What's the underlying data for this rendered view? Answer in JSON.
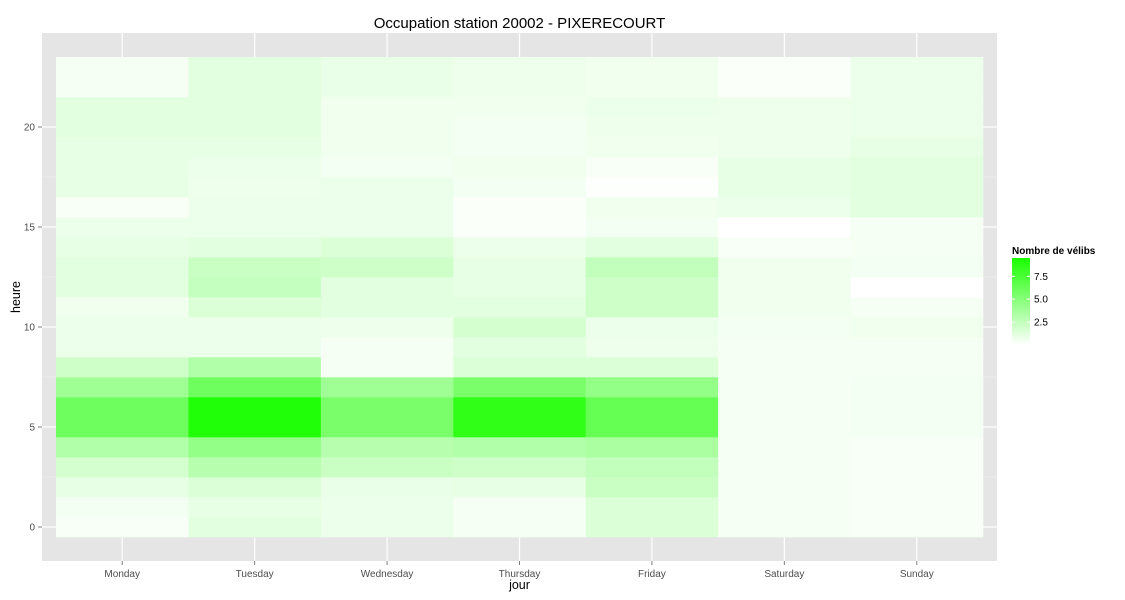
{
  "chart_data": {
    "type": "heatmap",
    "title": "Occupation station 20002 - PIXERECOURT",
    "xlabel": "jour",
    "ylabel": "heure",
    "x_categories": [
      "Monday",
      "Tuesday",
      "Wednesday",
      "Thursday",
      "Friday",
      "Saturday",
      "Sunday"
    ],
    "y_hours": [
      0,
      1,
      2,
      3,
      4,
      5,
      6,
      7,
      8,
      9,
      10,
      11,
      12,
      13,
      14,
      15,
      16,
      17,
      18,
      19,
      20,
      21,
      22,
      23
    ],
    "yticks": [
      0,
      5,
      10,
      15,
      20
    ],
    "ylim": [
      -0.5,
      23.5
    ],
    "values": [
      [
        0.3,
        1.2,
        0.8,
        0.4,
        1.5,
        0.4,
        0.3
      ],
      [
        0.5,
        1.0,
        0.8,
        0.4,
        1.5,
        0.4,
        0.3
      ],
      [
        1.0,
        1.5,
        0.9,
        1.0,
        2.2,
        0.4,
        0.3
      ],
      [
        1.8,
        3.0,
        2.2,
        2.0,
        2.5,
        0.4,
        0.3
      ],
      [
        3.2,
        4.5,
        3.0,
        3.2,
        3.5,
        0.4,
        0.3
      ],
      [
        6.0,
        9.2,
        5.5,
        8.6,
        6.4,
        0.4,
        0.5
      ],
      [
        6.0,
        9.2,
        5.5,
        8.6,
        6.4,
        0.4,
        0.5
      ],
      [
        4.0,
        6.0,
        4.0,
        5.5,
        4.5,
        0.4,
        0.5
      ],
      [
        2.0,
        3.2,
        0.4,
        1.5,
        1.5,
        0.4,
        0.4
      ],
      [
        0.8,
        0.8,
        0.4,
        1.2,
        0.7,
        0.4,
        0.4
      ],
      [
        0.8,
        0.8,
        0.7,
        1.8,
        0.8,
        0.5,
        0.6
      ],
      [
        0.6,
        1.5,
        1.2,
        1.2,
        2.0,
        0.6,
        0.4
      ],
      [
        1.2,
        2.4,
        1.2,
        1.0,
        2.0,
        0.6,
        0.0
      ],
      [
        1.2,
        2.2,
        2.0,
        1.0,
        2.5,
        0.6,
        0.5
      ],
      [
        1.0,
        1.2,
        1.5,
        0.8,
        1.2,
        0.3,
        0.4
      ],
      [
        0.8,
        0.8,
        0.8,
        0.2,
        0.5,
        0.0,
        0.4
      ],
      [
        0.3,
        0.8,
        0.8,
        0.2,
        0.6,
        0.8,
        1.2
      ],
      [
        1.0,
        0.7,
        0.8,
        0.5,
        0.1,
        1.0,
        1.2
      ],
      [
        1.0,
        0.8,
        0.5,
        0.6,
        0.3,
        1.0,
        1.2
      ],
      [
        1.0,
        1.0,
        0.6,
        0.5,
        0.6,
        0.7,
        1.0
      ],
      [
        1.2,
        1.2,
        0.6,
        0.5,
        0.7,
        0.7,
        0.8
      ],
      [
        1.2,
        1.2,
        0.6,
        0.6,
        0.8,
        0.7,
        0.8
      ],
      [
        0.4,
        1.2,
        0.9,
        0.7,
        0.6,
        0.2,
        0.8
      ],
      [
        0.4,
        1.2,
        0.9,
        0.7,
        0.6,
        0.2,
        0.8
      ]
    ],
    "color_low": "#ffffff",
    "color_high": "#1aff00",
    "panel_background": "#e5e5e5",
    "grid": true,
    "legend": {
      "title": "Nombre de vélibs",
      "position": "right",
      "ticks": [
        "2.5",
        "5.0",
        "7.5"
      ],
      "range": [
        0,
        9.5
      ]
    }
  }
}
